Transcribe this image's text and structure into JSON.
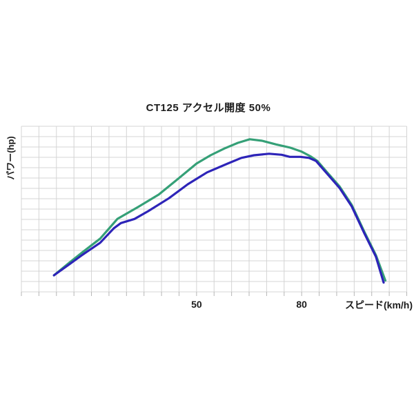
{
  "page": {
    "background": "#ffffff"
  },
  "chart": {
    "title": "CT125 アクセル開度 50%",
    "ylabel": "パワー(hp)",
    "xlabel": "スピード(km/h)"
  },
  "chart_data": {
    "type": "line",
    "title": "CT125 アクセル開度 50%",
    "xlabel": "スピード(km/h)",
    "ylabel": "パワー(hp)",
    "xlim": [
      0,
      110
    ],
    "ylim": [
      0,
      16
    ],
    "x_gridline_step_kmh": 5,
    "y_gridline_step_units": 1,
    "grid": true,
    "legend": false,
    "x_ticks": [
      {
        "value": 50,
        "label": "50"
      },
      {
        "value": 80,
        "label": "80"
      }
    ],
    "y_ticks": [],
    "colors": {
      "grid": "#d4d4d4",
      "tick": "#b5b5b5",
      "text": "#1c1c1c",
      "series_green": "#35a077",
      "series_blue": "#2d24b8"
    },
    "series": [
      {
        "name": "green-curve",
        "color": "#35a077",
        "points": [
          [
            9.3,
            1.6
          ],
          [
            13.6,
            2.8
          ],
          [
            17.5,
            3.85
          ],
          [
            22.5,
            5.15
          ],
          [
            27.4,
            7.05
          ],
          [
            33.3,
            8.2
          ],
          [
            39.2,
            9.4
          ],
          [
            44.1,
            10.75
          ],
          [
            50.0,
            12.4
          ],
          [
            54.0,
            13.2
          ],
          [
            57.9,
            13.85
          ],
          [
            61.8,
            14.4
          ],
          [
            65.2,
            14.75
          ],
          [
            68.7,
            14.6
          ],
          [
            72.7,
            14.25
          ],
          [
            76.6,
            13.95
          ],
          [
            80.0,
            13.55
          ],
          [
            82.5,
            13.1
          ],
          [
            84.5,
            12.65
          ],
          [
            87.4,
            11.5
          ],
          [
            90.8,
            10.2
          ],
          [
            94.3,
            8.4
          ],
          [
            97.9,
            5.8
          ],
          [
            101.2,
            3.55
          ],
          [
            103.9,
            1.1
          ]
        ]
      },
      {
        "name": "blue-curve",
        "color": "#2d24b8",
        "points": [
          [
            9.3,
            1.6
          ],
          [
            13.6,
            2.65
          ],
          [
            17.5,
            3.6
          ],
          [
            22.5,
            4.75
          ],
          [
            26.4,
            6.15
          ],
          [
            28.4,
            6.65
          ],
          [
            32.3,
            7.05
          ],
          [
            36.2,
            7.8
          ],
          [
            42.1,
            9.05
          ],
          [
            47.5,
            10.4
          ],
          [
            53.0,
            11.55
          ],
          [
            58.9,
            12.4
          ],
          [
            62.8,
            12.95
          ],
          [
            66.4,
            13.2
          ],
          [
            70.7,
            13.35
          ],
          [
            74.3,
            13.25
          ],
          [
            76.6,
            13.05
          ],
          [
            79.6,
            13.05
          ],
          [
            82.1,
            12.95
          ],
          [
            84.1,
            12.65
          ],
          [
            87.2,
            11.45
          ],
          [
            90.8,
            10.05
          ],
          [
            94.3,
            8.25
          ],
          [
            97.9,
            5.65
          ],
          [
            101.2,
            3.4
          ],
          [
            103.4,
            0.9
          ]
        ]
      }
    ]
  }
}
